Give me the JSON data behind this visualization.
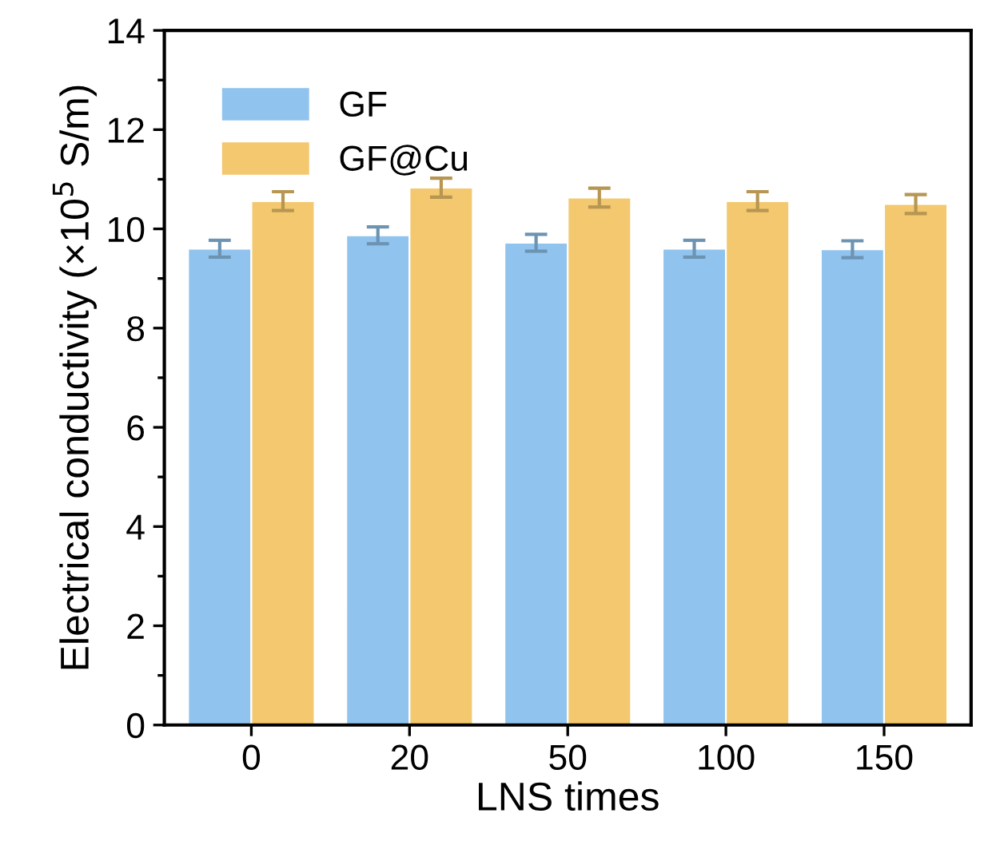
{
  "chart_data": {
    "type": "bar",
    "xlabel": "LNS times",
    "ylabel": "Electrical conductivity (×10$^{5}$ S/m)",
    "categories": [
      "0",
      "20",
      "50",
      "100",
      "150"
    ],
    "series": [
      {
        "name": "GF",
        "color": "#90c4ee",
        "values": [
          9.6,
          9.87,
          9.72,
          9.6,
          9.59
        ],
        "errors": [
          0.17,
          0.17,
          0.17,
          0.17,
          0.17
        ]
      },
      {
        "name": "GF@Cu",
        "color": "#f3c86e",
        "values": [
          10.56,
          10.83,
          10.63,
          10.56,
          10.5
        ],
        "errors": [
          0.19,
          0.19,
          0.19,
          0.19,
          0.19
        ]
      }
    ],
    "ylim": [
      0,
      14
    ],
    "yticks": [
      0,
      2,
      4,
      6,
      8,
      10,
      12,
      14
    ],
    "grid": false,
    "legend": "top left"
  }
}
